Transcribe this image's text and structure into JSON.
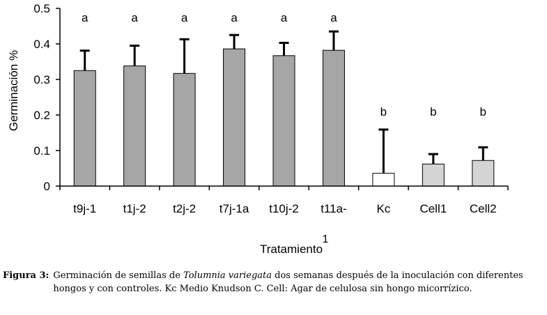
{
  "chart_data": {
    "type": "bar",
    "categories": [
      "t9j-1",
      "t1j-2",
      "t2j-2",
      "t7j-1a",
      "t10j-2",
      "t11a-",
      "Kc",
      "Cell1",
      "Cell2"
    ],
    "values": [
      0.325,
      0.338,
      0.317,
      0.386,
      0.367,
      0.382,
      0.036,
      0.062,
      0.072
    ],
    "error_upper": [
      0.381,
      0.395,
      0.413,
      0.425,
      0.403,
      0.435,
      0.159,
      0.09,
      0.109
    ],
    "significance": [
      "a",
      "a",
      "a",
      "a",
      "a",
      "a",
      "b",
      "b",
      "b"
    ],
    "bar_colors": [
      "#a6a6a6",
      "#a6a6a6",
      "#a6a6a6",
      "#a6a6a6",
      "#a6a6a6",
      "#a6a6a6",
      "#ffffff",
      "#d4d4d4",
      "#d4d4d4"
    ],
    "xlabel": "Tratamiento",
    "xlabel_superscript": "1",
    "ylabel": "Germinación %",
    "ylim": [
      0,
      0.5
    ],
    "yticks": [
      "0",
      "0.1",
      "0.2",
      "0.3",
      "0.4",
      "0.5"
    ],
    "grid": false
  },
  "caption": {
    "label": "Figura 3:",
    "text_before_italic": "Germinación de semillas de ",
    "italic": "Tolumnia variegata",
    "text_after_italic": " dos semanas después de la inoculación con diferentes hongos y con controles.  Kc Medio Knudson C. Cell: Agar de celulosa sin hongo micorrízico."
  }
}
